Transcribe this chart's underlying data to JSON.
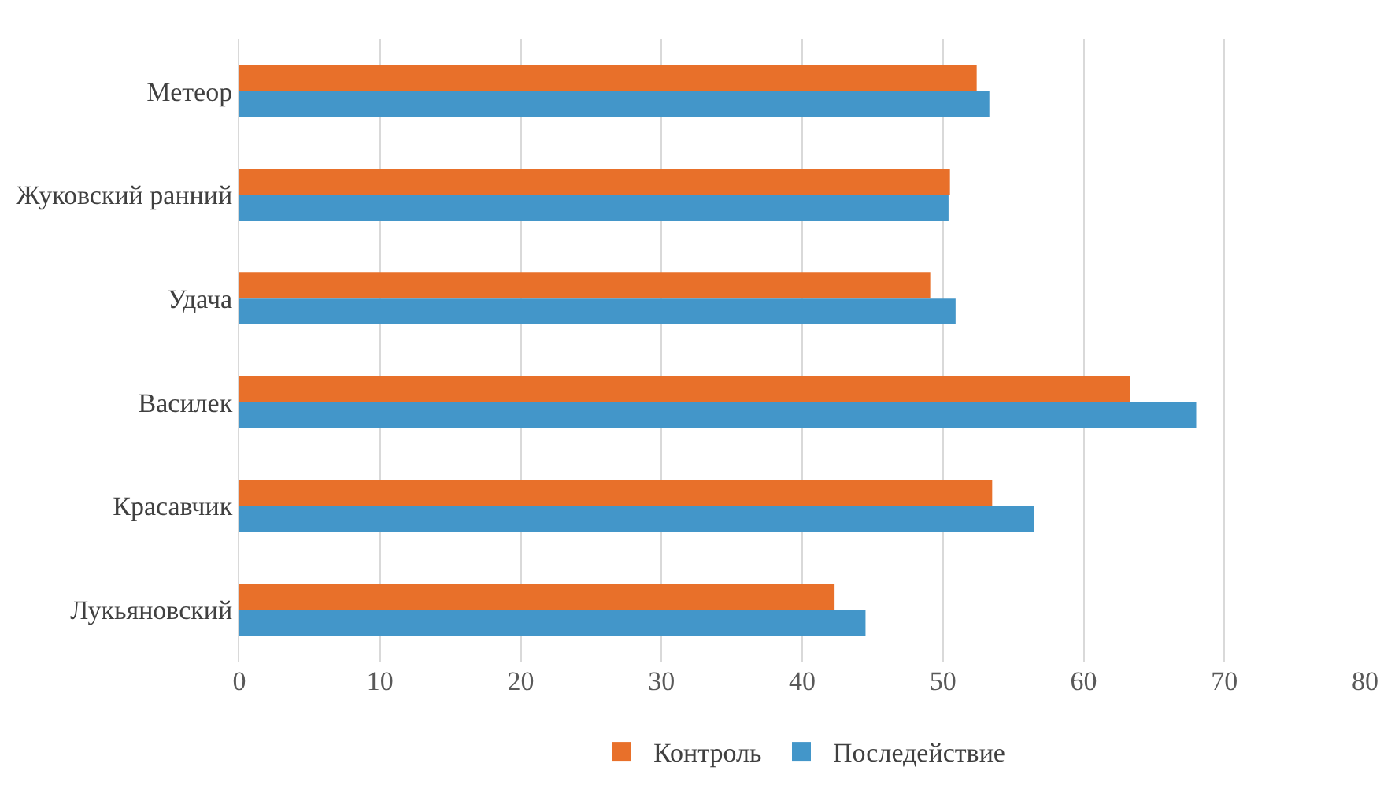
{
  "chart_data": {
    "type": "bar",
    "orientation": "horizontal",
    "categories": [
      "Метеор",
      "Жуковский ранний",
      "Удача",
      "Василек",
      "Красавчик",
      "Лукьяновский"
    ],
    "series": [
      {
        "name": "Контроль",
        "color": "#e8702a",
        "values": [
          52.4,
          50.5,
          49.1,
          63.3,
          53.5,
          42.3
        ]
      },
      {
        "name": "Последействие",
        "color": "#4396c9",
        "values": [
          53.3,
          50.4,
          50.9,
          68.0,
          56.5,
          44.5
        ]
      }
    ],
    "xlim": [
      0,
      80
    ],
    "xticks": [
      0,
      10,
      20,
      30,
      40,
      50,
      60,
      70,
      80
    ],
    "grid": "x",
    "legend": "bottom"
  }
}
